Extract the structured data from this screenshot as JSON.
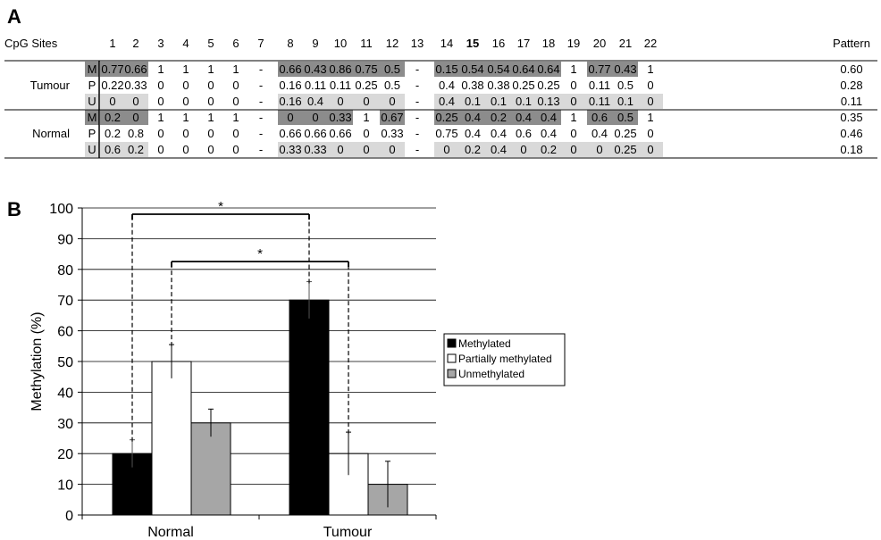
{
  "panel_a": {
    "letter": "A",
    "sites_label": "CpG Sites",
    "sites": [
      "1",
      "2",
      "3",
      "4",
      "5",
      "6",
      "7",
      "8",
      "9",
      "10",
      "11",
      "12",
      "13",
      "14",
      "15",
      "16",
      "17",
      "18",
      "19",
      "20",
      "21",
      "22"
    ],
    "bold_site": "15",
    "pattern_label": "Pattern",
    "colors": {
      "M": "#8c8c8c",
      "U": "#d9d9d9"
    },
    "groups": [
      {
        "name": "Tumour",
        "rows": [
          {
            "code": "M",
            "pattern": "0.60",
            "values": [
              "0.77",
              "0.66",
              "1",
              "1",
              "1",
              "1",
              "-",
              "0.66",
              "0.43",
              "0.86",
              "0.75",
              "0.5",
              "-",
              "0.15",
              "0.54",
              "0.54",
              "0.64",
              "0.64",
              "1",
              "0.77",
              "0.43",
              "1"
            ]
          },
          {
            "code": "P",
            "pattern": "0.28",
            "values": [
              "0.22",
              "0.33",
              "0",
              "0",
              "0",
              "0",
              "-",
              "0.16",
              "0.11",
              "0.11",
              "0.25",
              "0.5",
              "-",
              "0.4",
              "0.38",
              "0.38",
              "0.25",
              "0.25",
              "0",
              "0.11",
              "0.5",
              "0"
            ]
          },
          {
            "code": "U",
            "pattern": "0.11",
            "values": [
              "0",
              "0",
              "0",
              "0",
              "0",
              "0",
              "-",
              "0.16",
              "0.4",
              "0",
              "0",
              "0",
              "-",
              "0.4",
              "0.1",
              "0.1",
              "0.1",
              "0.13",
              "0",
              "0.11",
              "0.1",
              "0"
            ]
          }
        ]
      },
      {
        "name": "Normal",
        "rows": [
          {
            "code": "M",
            "pattern": "0.35",
            "values": [
              "0.2",
              "0",
              "1",
              "1",
              "1",
              "1",
              "-",
              "0",
              "0",
              "0.33",
              "1",
              "0.67",
              "-",
              "0.25",
              "0.4",
              "0.2",
              "0.4",
              "0.4",
              "1",
              "0.6",
              "0.5",
              "1"
            ]
          },
          {
            "code": "P",
            "pattern": "0.46",
            "values": [
              "0.2",
              "0.8",
              "0",
              "0",
              "0",
              "0",
              "-",
              "0.66",
              "0.66",
              "0.66",
              "0",
              "0.33",
              "-",
              "0.75",
              "0.4",
              "0.4",
              "0.6",
              "0.4",
              "0",
              "0.4",
              "0.25",
              "0"
            ]
          },
          {
            "code": "U",
            "pattern": "0.18",
            "values": [
              "0.6",
              "0.2",
              "0",
              "0",
              "0",
              "0",
              "-",
              "0.33",
              "0.33",
              "0",
              "0",
              "0",
              "-",
              "0",
              "0.2",
              "0.4",
              "0",
              "0.2",
              "0",
              "0",
              "0.25",
              "0"
            ]
          }
        ]
      }
    ]
  },
  "panel_b": {
    "letter": "B",
    "significance_marker": "*"
  },
  "chart_data": {
    "type": "bar",
    "categories": [
      "Normal",
      "Tumour"
    ],
    "series": [
      {
        "name": "Methylated",
        "color": "#000000",
        "values": [
          20,
          70
        ],
        "errors": [
          4.5,
          6
        ]
      },
      {
        "name": "Partially methylated",
        "color": "#ffffff",
        "values": [
          50,
          20
        ],
        "errors": [
          5.5,
          7
        ]
      },
      {
        "name": "Unmethylated",
        "color": "#a6a6a6",
        "values": [
          30,
          10
        ],
        "errors": [
          4.5,
          7.5
        ]
      }
    ],
    "ylabel": "Methylation (%)",
    "xlabel": "",
    "ylim": [
      0,
      100
    ],
    "yticks": [
      0,
      10,
      20,
      30,
      40,
      50,
      60,
      70,
      80,
      90,
      100
    ],
    "grid": true,
    "legend_position": "right"
  }
}
